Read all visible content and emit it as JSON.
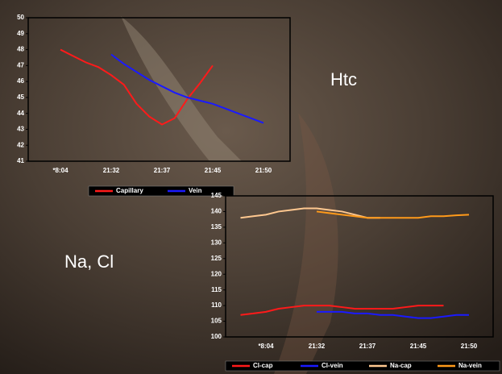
{
  "chart_data": [
    {
      "type": "line",
      "annotation": "Htc",
      "categories": [
        "*8:04",
        null,
        null,
        null,
        "21:32",
        null,
        null,
        null,
        "21:37",
        null,
        null,
        null,
        "21:45",
        null,
        null,
        null,
        "21:50"
      ],
      "series": [
        {
          "name": "Capillary",
          "color": "#ff1a1a",
          "values": [
            48.0,
            47.6,
            47.2,
            46.9,
            46.4,
            45.8,
            44.6,
            43.8,
            43.3,
            43.7,
            44.9,
            45.9,
            47.0,
            null,
            null,
            null,
            null
          ]
        },
        {
          "name": "Vein",
          "color": "#1a1aff",
          "values": [
            null,
            null,
            null,
            null,
            47.7,
            47.1,
            46.6,
            46.1,
            45.7,
            45.3,
            45.0,
            44.8,
            44.6,
            44.3,
            44.0,
            43.7,
            43.4
          ]
        }
      ],
      "ylim": [
        41,
        50
      ],
      "yticks": [
        41,
        42,
        43,
        44,
        45,
        46,
        47,
        48,
        49,
        50
      ],
      "legend": "bottom"
    },
    {
      "type": "line",
      "annotation": "Na, Cl",
      "categories": [
        null,
        null,
        "*8:04",
        null,
        null,
        null,
        "21:32",
        null,
        null,
        null,
        "21:37",
        null,
        null,
        null,
        "21:45",
        null,
        null,
        null,
        "21:50"
      ],
      "series": [
        {
          "name": "Cl-cap",
          "color": "#ff1a1a",
          "values": [
            107,
            107.5,
            108,
            109,
            109.5,
            110,
            110,
            110,
            109.5,
            109,
            109,
            109,
            109,
            109.5,
            110,
            110,
            110,
            null,
            null
          ]
        },
        {
          "name": "Cl-vein",
          "color": "#1a1aff",
          "values": [
            null,
            null,
            null,
            null,
            null,
            null,
            108,
            108,
            108,
            107.5,
            107.5,
            107,
            107,
            106.5,
            106,
            106,
            106.5,
            107,
            107
          ]
        },
        {
          "name": "Na-cap",
          "color": "#ffc890",
          "values": [
            138,
            138.5,
            139,
            140,
            140.5,
            141,
            141,
            140.5,
            140,
            139,
            138,
            138,
            null,
            null,
            null,
            null,
            null,
            null,
            null
          ]
        },
        {
          "name": "Na-vein",
          "color": "#ff9a1a",
          "values": [
            null,
            null,
            null,
            null,
            null,
            null,
            140,
            139.5,
            139,
            138.5,
            138,
            138,
            138,
            138,
            138,
            138.5,
            138.5,
            138.8,
            139
          ]
        }
      ],
      "ylim": [
        100,
        145
      ],
      "yticks": [
        100,
        105,
        110,
        115,
        120,
        125,
        130,
        135,
        140,
        145
      ],
      "legend": "bottom"
    }
  ]
}
